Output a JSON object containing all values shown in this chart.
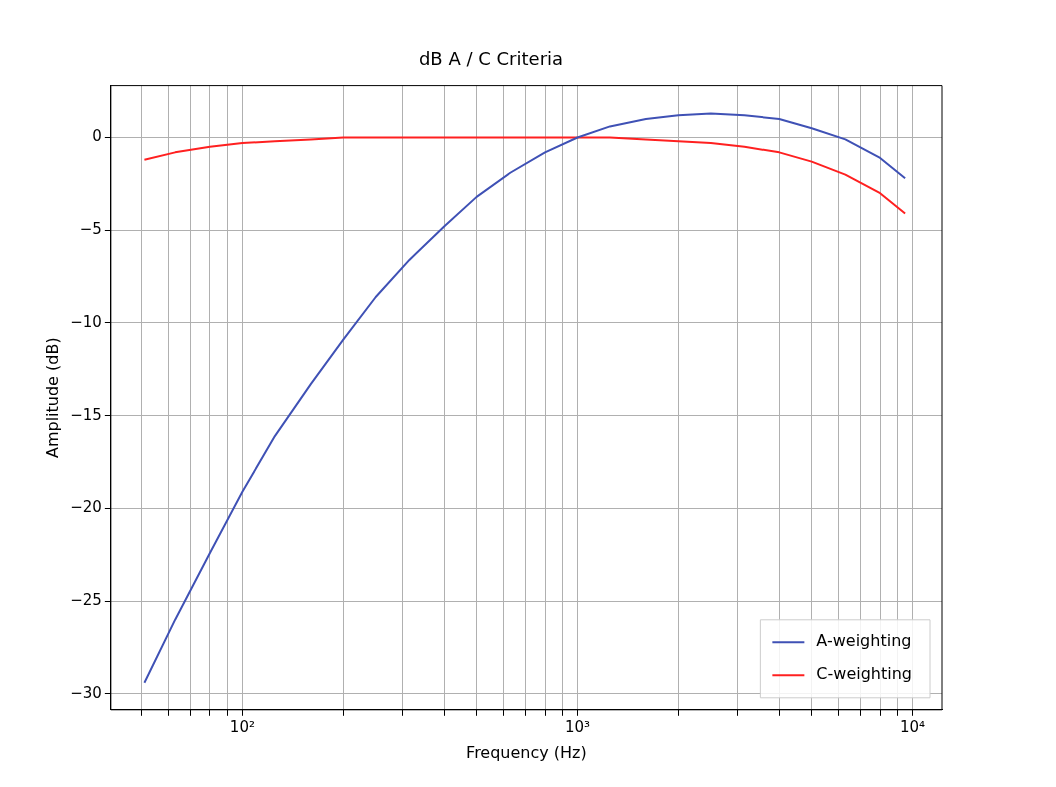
{
  "chart_data": {
    "type": "line",
    "title": "dB A / C Criteria",
    "xlabel": "Frequency (Hz)",
    "ylabel": "Amplitude (dB)",
    "log": "x",
    "grid": true,
    "legend": "bottom right",
    "marker": "none",
    "line_style": "solid",
    "x": [
      51,
      63,
      80,
      100,
      125,
      160,
      200,
      250,
      315,
      400,
      500,
      630,
      800,
      1000,
      1250,
      1600,
      2000,
      2500,
      3150,
      4000,
      5000,
      6300,
      8000,
      9500
    ],
    "series": [
      {
        "name": "A-weighting",
        "color": "#3f51b5",
        "values": [
          -29.4,
          -26.0,
          -22.4,
          -19.1,
          -16.1,
          -13.3,
          -10.9,
          -8.6,
          -6.6,
          -4.8,
          -3.2,
          -1.9,
          -0.8,
          0,
          0.6,
          1.0,
          1.2,
          1.3,
          1.2,
          1.0,
          0.5,
          -0.1,
          -1.1,
          -2.2
        ]
      },
      {
        "name": "C-weighting",
        "color": "#ff2020",
        "values": [
          -1.2,
          -0.8,
          -0.5,
          -0.3,
          -0.2,
          -0.1,
          0,
          0,
          0,
          0,
          0,
          0,
          0,
          0,
          0,
          -0.1,
          -0.2,
          -0.3,
          -0.5,
          -0.8,
          -1.3,
          -2.0,
          -3.0,
          -4.1
        ]
      }
    ],
    "xlim": [
      40.5,
      12240
    ],
    "xticks": [
      {
        "value": 50,
        "label": null
      },
      {
        "value": 60,
        "label": null
      },
      {
        "value": 70,
        "label": null
      },
      {
        "value": 80,
        "label": null
      },
      {
        "value": 90,
        "label": null
      },
      {
        "value": 100,
        "label": "10²"
      },
      {
        "value": 200,
        "label": null
      },
      {
        "value": 300,
        "label": null
      },
      {
        "value": 400,
        "label": null
      },
      {
        "value": 500,
        "label": null
      },
      {
        "value": 600,
        "label": null
      },
      {
        "value": 700,
        "label": null
      },
      {
        "value": 800,
        "label": null
      },
      {
        "value": 900,
        "label": null
      },
      {
        "value": 1000,
        "label": "10³"
      },
      {
        "value": 2000,
        "label": null
      },
      {
        "value": 3000,
        "label": null
      },
      {
        "value": 4000,
        "label": null
      },
      {
        "value": 5000,
        "label": null
      },
      {
        "value": 6000,
        "label": null
      },
      {
        "value": 7000,
        "label": null
      },
      {
        "value": 8000,
        "label": null
      },
      {
        "value": 9000,
        "label": null
      },
      {
        "value": 10000,
        "label": "10⁴"
      }
    ],
    "ylim": [
      -30.86,
      2.8
    ],
    "yticks": [
      {
        "value": -30,
        "label": "−30"
      },
      {
        "value": -25,
        "label": "−25"
      },
      {
        "value": -20,
        "label": "−20"
      },
      {
        "value": -15,
        "label": "−15"
      },
      {
        "value": -10,
        "label": "−10"
      },
      {
        "value": -5,
        "label": "−5"
      },
      0
    ]
  }
}
